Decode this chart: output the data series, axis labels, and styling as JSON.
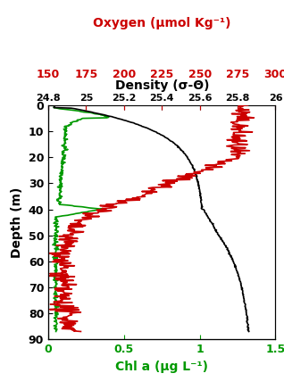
{
  "title_density": "Density (σ-Θ)",
  "title_oxygen": "Oxygen (μmol Kg⁻¹)",
  "title_chl": "Chl a (μg L⁻¹)",
  "ylabel": "Depth (m)",
  "density_xlim": [
    24.8,
    26.0
  ],
  "density_xticks": [
    24.8,
    25.0,
    25.2,
    25.4,
    25.6,
    25.8,
    26.0
  ],
  "density_xticklabels": [
    "24.8",
    "25",
    "25.2",
    "25.4",
    "25.6",
    "25.8",
    "26"
  ],
  "oxygen_xlim": [
    150,
    300
  ],
  "oxygen_xticks": [
    150,
    175,
    200,
    225,
    250,
    275,
    300
  ],
  "chl_xlim": [
    0,
    1.5
  ],
  "chl_xticks": [
    0,
    0.5,
    1.0,
    1.5
  ],
  "chl_xticklabels": [
    "0",
    "0.5",
    "1",
    "1.5"
  ],
  "ylim": [
    0,
    90
  ],
  "yticks": [
    0,
    10,
    20,
    30,
    40,
    50,
    60,
    70,
    80,
    90
  ],
  "color_density": "#000000",
  "color_oxygen": "#cc0000",
  "color_chl": "#009900",
  "figsize": [
    3.18,
    4.37
  ],
  "dpi": 100
}
